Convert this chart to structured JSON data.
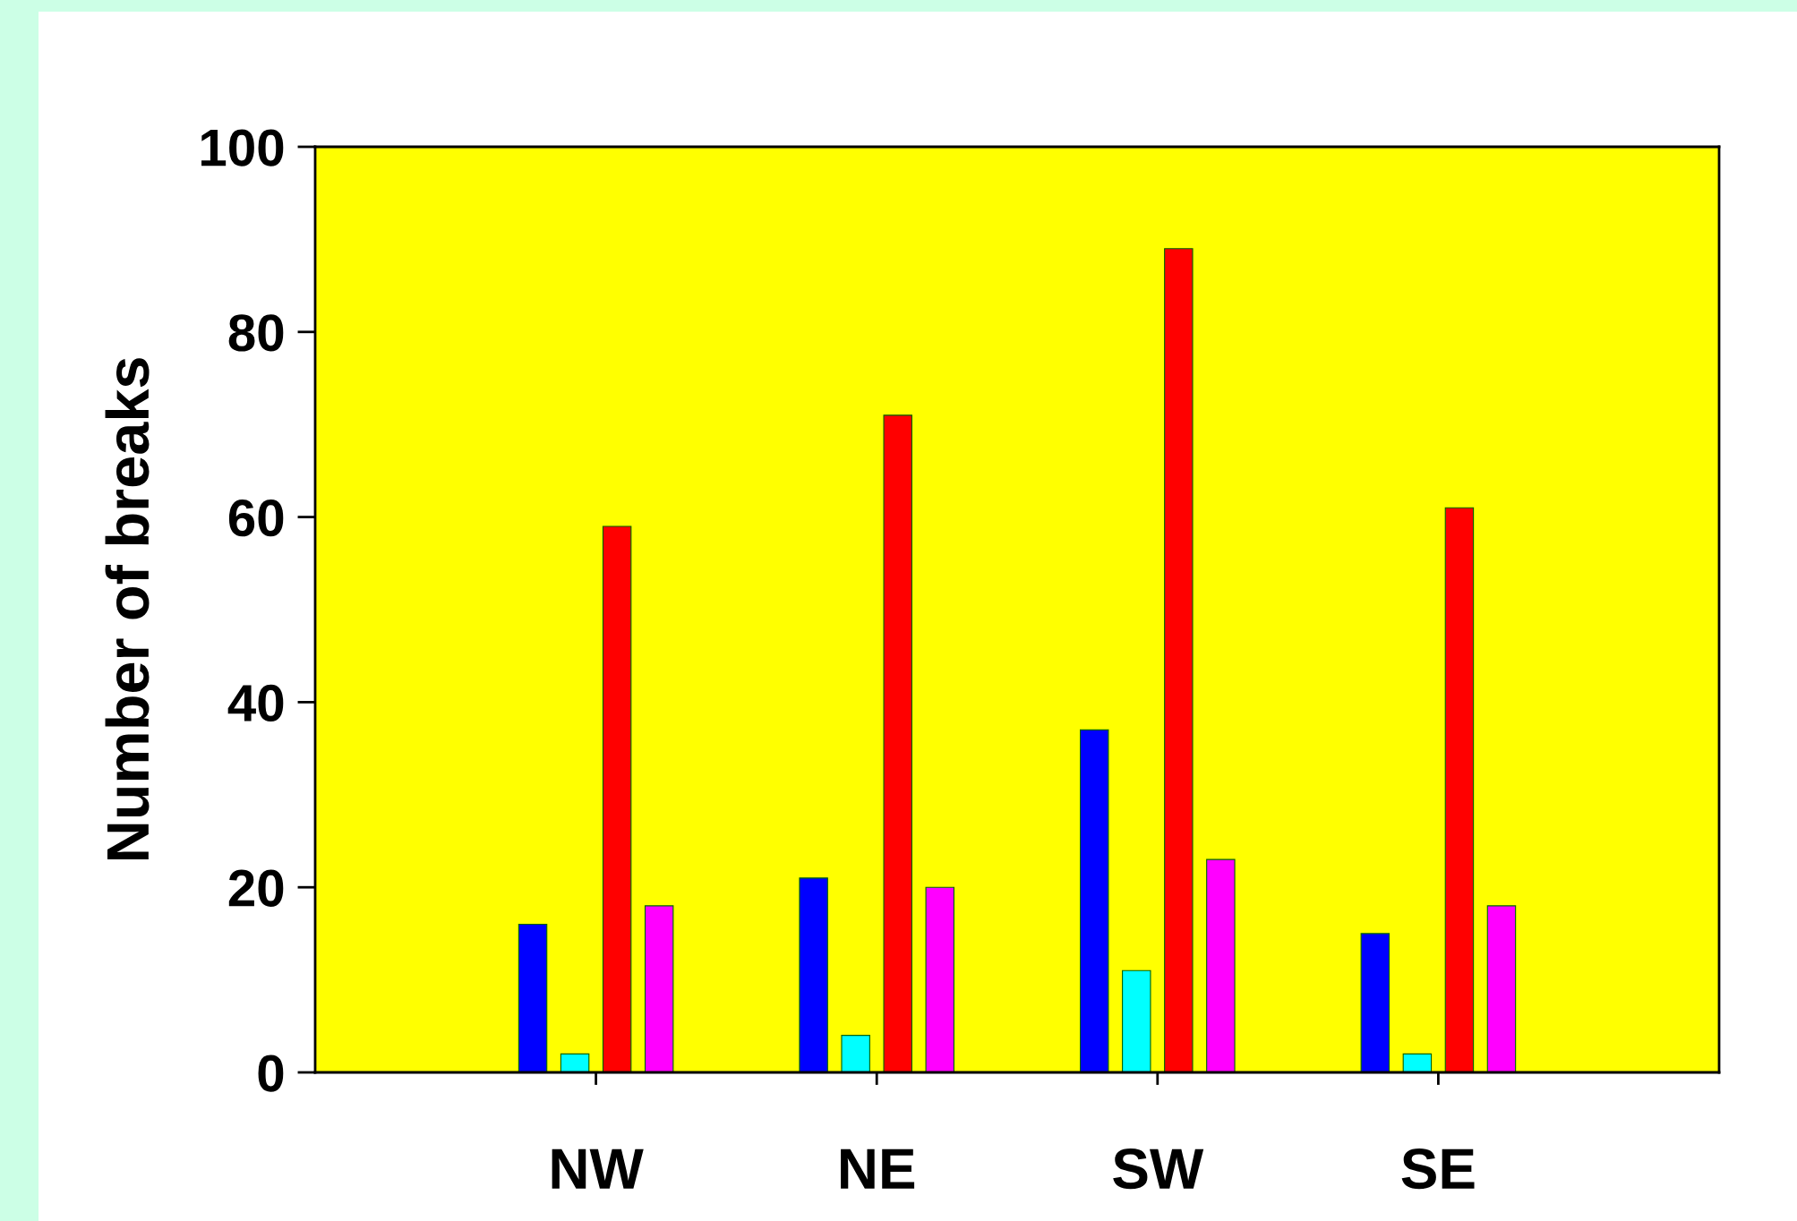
{
  "chart_data": {
    "type": "bar",
    "ylabel": "Number of breaks",
    "categories": [
      "NW",
      "NE",
      "SW",
      "SE"
    ],
    "series": [
      {
        "color": "#0000ff",
        "values": [
          16,
          21,
          37,
          15
        ]
      },
      {
        "color": "#00ffff",
        "values": [
          2,
          4,
          11,
          2
        ]
      },
      {
        "color": "#ff0000",
        "values": [
          59,
          71,
          89,
          61
        ]
      },
      {
        "color": "#ff00ff",
        "values": [
          18,
          20,
          23,
          18
        ]
      }
    ],
    "ylim": [
      0,
      100
    ],
    "yticks": [
      0,
      20,
      40,
      60,
      80,
      100
    ],
    "grid": false
  }
}
